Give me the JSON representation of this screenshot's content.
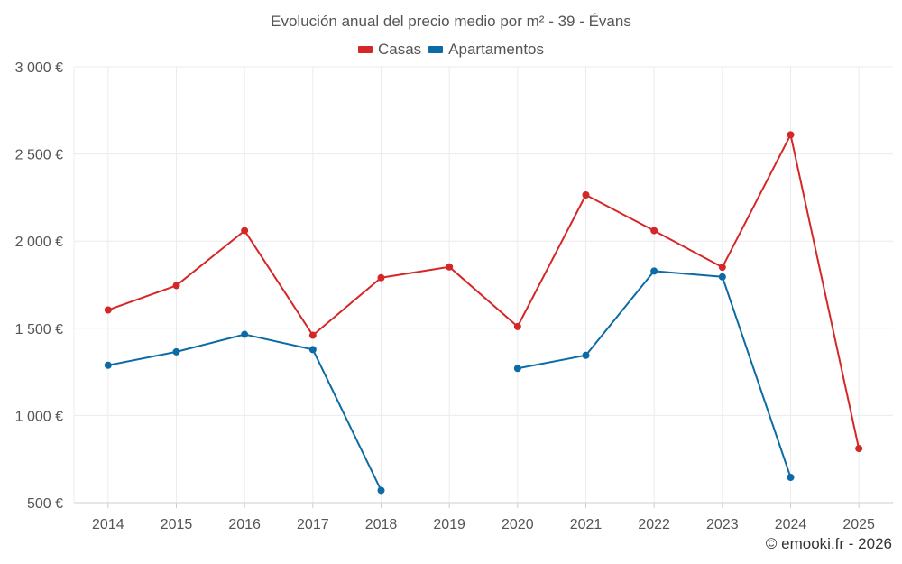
{
  "chart_data": {
    "type": "line",
    "title": "Evolución anual del precio medio por m² - 39 - Évans",
    "xlabel": "",
    "ylabel": "",
    "categories": [
      "2014",
      "2015",
      "2016",
      "2017",
      "2018",
      "2019",
      "2020",
      "2021",
      "2022",
      "2023",
      "2024",
      "2025"
    ],
    "ylim": [
      500,
      3000
    ],
    "yticks": [
      500,
      1000,
      1500,
      2000,
      2500,
      3000
    ],
    "ytick_labels": [
      "500 €",
      "1 000 €",
      "1 500 €",
      "2 000 €",
      "2 500 €",
      "3 000 €"
    ],
    "grid": true,
    "legend_position": "top-center",
    "series": [
      {
        "name": "Casas",
        "color": "#d62728",
        "values": [
          1605,
          1745,
          2060,
          1460,
          1790,
          1852,
          1510,
          2265,
          2060,
          1850,
          2610,
          810
        ]
      },
      {
        "name": "Apartamentos",
        "color": "#0c6ba4",
        "values": [
          1288,
          1365,
          1465,
          1378,
          570,
          null,
          1270,
          1345,
          1828,
          1795,
          645,
          null
        ]
      }
    ]
  },
  "credit": "© emooki.fr - 2026"
}
